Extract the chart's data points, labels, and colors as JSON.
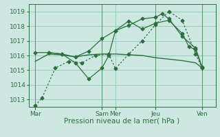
{
  "background_color": "#cce8e0",
  "grid_color": "#99ccbb",
  "line_color": "#2d6e3e",
  "tick_color": "#2d6e3e",
  "xlabel": "Pression niveau de la mer( hPa )",
  "ylim": [
    1012.5,
    1019.5
  ],
  "yticks": [
    1013,
    1014,
    1015,
    1016,
    1017,
    1018,
    1019
  ],
  "xlim": [
    0,
    14
  ],
  "day_labels": [
    "Mar",
    "Sam",
    "Mer",
    "Jeu",
    "Ven"
  ],
  "day_positions": [
    0.5,
    5.5,
    6.5,
    9.5,
    13.0
  ],
  "vline_positions": [
    0.5,
    5.5,
    9.5,
    13.0
  ],
  "series": [
    {
      "x": [
        0.5,
        1.0,
        2.0,
        3.0,
        4.0,
        5.0,
        6.0,
        6.5,
        7.5,
        8.5,
        9.5,
        10.5,
        11.5,
        12.5,
        13.0
      ],
      "y": [
        1012.6,
        1013.1,
        1015.15,
        1015.6,
        1015.5,
        1016.0,
        1016.1,
        1015.1,
        1016.1,
        1017.0,
        1018.1,
        1019.0,
        1018.4,
        1016.1,
        1015.15
      ],
      "style": "dotted",
      "marker": "D",
      "markersize": 2.5,
      "lw": 0.9
    },
    {
      "x": [
        0.5,
        1.5,
        2.5,
        3.5,
        4.5,
        5.5,
        6.5,
        7.5,
        8.5,
        9.5,
        10.5,
        11.5,
        12.5,
        13.0
      ],
      "y": [
        1015.6,
        1016.1,
        1016.05,
        1015.9,
        1016.05,
        1016.1,
        1016.1,
        1016.05,
        1016.0,
        1015.85,
        1015.75,
        1015.65,
        1015.5,
        1015.15
      ],
      "style": "solid",
      "marker": null,
      "markersize": 0,
      "lw": 1.0
    },
    {
      "x": [
        0.5,
        1.5,
        2.5,
        3.5,
        4.5,
        5.5,
        6.0,
        6.5,
        7.5,
        8.5,
        9.5,
        10.5,
        11.5,
        12.0,
        12.5,
        13.0
      ],
      "y": [
        1016.2,
        1016.2,
        1016.1,
        1015.5,
        1014.4,
        1015.15,
        1016.0,
        1017.7,
        1018.35,
        1017.8,
        1018.2,
        1018.4,
        1017.5,
        1016.6,
        1016.4,
        1015.15
      ],
      "style": "solid",
      "marker": "D",
      "markersize": 2.5,
      "lw": 0.9
    },
    {
      "x": [
        1.5,
        2.5,
        3.5,
        4.5,
        5.5,
        6.5,
        7.5,
        8.5,
        9.5,
        10.0,
        10.5,
        11.5,
        12.5,
        13.0
      ],
      "y": [
        1016.2,
        1016.1,
        1015.9,
        1016.3,
        1017.15,
        1017.7,
        1018.05,
        1018.5,
        1018.6,
        1018.85,
        1018.5,
        1017.3,
        1016.5,
        1015.2
      ],
      "style": "solid",
      "marker": "D",
      "markersize": 2.5,
      "lw": 0.9
    }
  ]
}
